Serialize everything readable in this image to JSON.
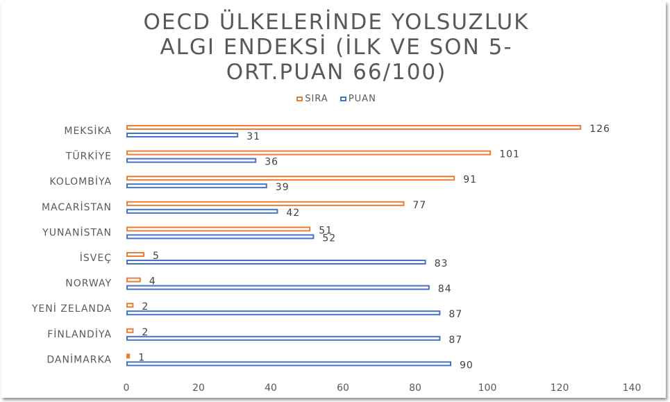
{
  "chart_data": {
    "type": "bar",
    "orientation": "horizontal",
    "title_lines": [
      "OECD ÜLKELERİNDE YOLSUZLUK",
      "ALGI ENDEKSİ (İLK VE SON 5-",
      "ORT.PUAN 66/100)"
    ],
    "categories": [
      "MEKSİKA",
      "TÜRKİYE",
      "KOLOMBİYA",
      "MACARİSTAN",
      "YUNANİSTAN",
      "İSVEÇ",
      "NORWAY",
      "YENİ ZELANDA",
      "FİNLANDİYA",
      "DANİMARKA"
    ],
    "series": [
      {
        "name": "SIRA",
        "color": "#ED7D31",
        "values": [
          126,
          101,
          91,
          77,
          51,
          5,
          4,
          2,
          2,
          1
        ]
      },
      {
        "name": "PUAN",
        "color": "#4472C4",
        "values": [
          31,
          36,
          39,
          42,
          52,
          83,
          84,
          87,
          87,
          90
        ]
      }
    ],
    "xlim": [
      0,
      140
    ],
    "xticks": [
      "0",
      "20",
      "40",
      "60",
      "80",
      "100",
      "120",
      "140"
    ],
    "grid": false,
    "legend_position": "top",
    "data_labels": true
  }
}
